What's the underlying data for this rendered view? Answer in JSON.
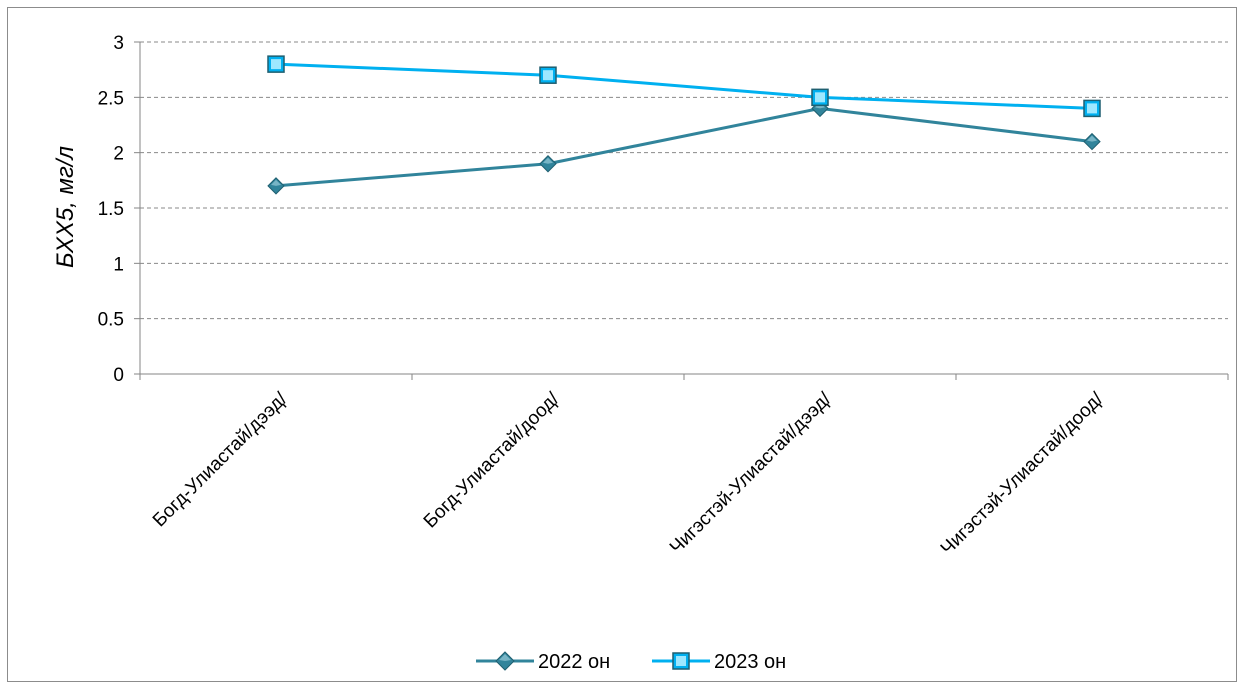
{
  "chart_data": {
    "type": "line",
    "categories": [
      "Богд-Улиастай/дээд/",
      "Богд-Улиастай/доод/",
      "Чигэстэй-Улиастай/дээд/",
      "Чигэстэй-Улиастай/доод/"
    ],
    "series": [
      {
        "name": "2022 он",
        "values": [
          1.7,
          1.9,
          2.4,
          2.1
        ],
        "color": "#31849B",
        "marker": "diamond"
      },
      {
        "name": "2023 он",
        "values": [
          2.8,
          2.7,
          2.5,
          2.4
        ],
        "color": "#00B0F0",
        "marker": "square"
      }
    ],
    "ylabel": "БХХ5, мг/л",
    "xlabel": "",
    "ylim": [
      0,
      3
    ],
    "yticks": [
      "0",
      "0.5",
      "1",
      "1.5",
      "2",
      "2.5",
      "3"
    ],
    "grid": "horizontal dashed",
    "legend_position": "bottom"
  }
}
